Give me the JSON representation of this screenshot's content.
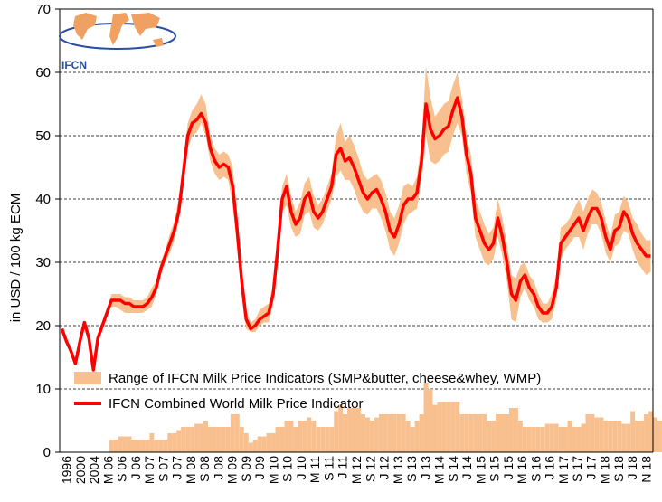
{
  "chart_data": {
    "type": "line",
    "title": "",
    "xlabel": "",
    "ylabel": "in USD / 100 kg ECM",
    "ylim": [
      0,
      70
    ],
    "yticks": [
      "0",
      "10",
      "20",
      "30",
      "40",
      "50",
      "60",
      "70"
    ],
    "grid": "horizontal dashed",
    "legend_position": "bottom-left",
    "logo_text": "IFCN",
    "x_tick_labels": [
      "1996",
      "2000",
      "2004",
      "M 06",
      "S 06",
      "J 06",
      "M 07",
      "S 07",
      "J 07",
      "M 08",
      "S 08",
      "J 08",
      "M 09",
      "S 09",
      "J 09",
      "M 10",
      "S 10",
      "J 10",
      "M 11",
      "S 11",
      "J 11",
      "M 12",
      "S 12",
      "J 12",
      "M 13",
      "S 13",
      "J 13",
      "M 14",
      "S 14",
      "J 14",
      "M 15",
      "S 15",
      "J 15",
      "M 16",
      "S 16",
      "J 16",
      "M 17",
      "S 17",
      "J 17",
      "M 18",
      "S 18",
      "J 18",
      "N 18"
    ],
    "colors": {
      "line": "#ff0000",
      "range": "#f9c08f",
      "bars": "#f9c08f"
    },
    "series": [
      {
        "name": "IFCN Combined World Milk Price Indicator",
        "type": "line",
        "values": [
          19.5,
          17.5,
          16,
          14,
          17.5,
          20.5,
          18,
          13,
          18,
          20,
          22,
          24,
          24,
          24,
          23.5,
          23.5,
          23,
          23,
          23,
          23.5,
          24.5,
          26,
          29,
          31,
          33,
          35,
          38,
          44,
          50,
          52,
          52.5,
          53.5,
          52,
          48,
          46,
          45,
          45.5,
          45,
          42,
          35,
          27,
          21,
          19.5,
          20,
          21,
          21.5,
          22,
          25,
          32,
          40,
          42,
          38,
          36,
          37,
          40,
          41,
          38,
          37,
          38,
          40,
          42,
          47,
          48,
          46,
          46.5,
          45,
          43,
          41,
          40,
          41,
          41.5,
          40,
          38,
          35,
          34,
          36,
          39,
          40,
          40,
          41,
          46,
          55,
          51,
          49.5,
          50,
          51,
          51.5,
          54,
          56,
          53,
          47,
          44,
          37,
          35,
          33,
          32,
          33,
          37,
          34,
          30,
          25,
          24,
          27,
          28,
          26,
          25,
          23,
          22,
          22,
          23,
          26,
          33,
          34,
          35,
          36,
          37,
          35,
          37,
          38.5,
          38.5,
          37,
          34,
          32,
          35,
          35.5,
          38,
          37,
          34.5,
          33,
          32,
          31,
          31
        ]
      },
      {
        "name": "Range of IFCN Milk Price Indicators (SMP&butter, cheese&whey, WMP)",
        "type": "band",
        "lower": [
          19.5,
          17.5,
          16,
          14,
          17.5,
          20.5,
          18,
          13,
          18,
          20,
          22,
          23,
          23,
          22.5,
          22,
          22,
          22,
          22,
          22,
          22.5,
          23,
          25,
          28,
          30,
          31.5,
          33.5,
          36.5,
          42,
          48,
          50,
          50.5,
          52,
          50,
          46,
          44,
          43,
          43.5,
          43,
          39,
          32,
          25,
          19.5,
          19,
          19,
          20,
          20.5,
          20.5,
          23.5,
          30,
          38,
          39,
          35.5,
          34,
          34.5,
          37.5,
          38,
          35.5,
          35,
          36,
          38,
          40,
          43.5,
          44.5,
          43,
          43,
          41.5,
          39.5,
          38,
          37.5,
          38.5,
          38.5,
          37,
          35,
          32,
          31,
          33,
          36,
          37.5,
          38,
          38.5,
          43,
          50,
          46,
          45.5,
          46,
          47,
          47.5,
          50,
          52,
          50,
          44,
          41,
          34,
          32,
          30,
          29.5,
          30.5,
          34,
          31,
          27,
          21,
          20.5,
          24.5,
          26,
          24,
          23,
          21,
          20.5,
          20.5,
          21,
          24,
          30.5,
          32,
          33,
          34,
          34,
          32,
          34.5,
          36,
          36,
          34.5,
          31.5,
          30,
          32.5,
          33,
          35,
          34.5,
          32,
          30,
          29,
          28,
          28.5
        ],
        "upper": [
          19.5,
          17.5,
          16,
          14,
          17.5,
          20.5,
          18,
          13,
          18,
          20,
          22,
          25,
          25,
          25,
          24.5,
          24.5,
          24,
          24,
          24,
          24.5,
          26,
          27,
          30,
          32,
          34.5,
          36.5,
          40,
          46,
          52,
          54,
          55,
          56.5,
          55,
          50,
          48,
          47,
          47.5,
          47,
          45,
          38,
          29,
          22.5,
          20.5,
          21,
          22.5,
          23,
          23.5,
          26.5,
          34,
          42,
          44,
          40.5,
          38,
          39.5,
          42.5,
          43.5,
          40.5,
          39,
          40,
          42,
          44,
          50,
          52,
          49,
          50,
          48.5,
          46.5,
          44,
          43,
          43.5,
          44,
          43,
          41,
          38,
          37,
          39,
          42,
          42.5,
          42,
          43.5,
          49,
          61,
          56,
          53,
          54,
          55,
          55.5,
          58,
          60,
          56,
          50,
          47,
          40,
          38,
          36,
          34.5,
          35.5,
          40,
          37,
          33,
          28,
          27.5,
          29.5,
          30,
          28,
          27,
          25,
          23.5,
          23.5,
          25,
          28,
          35.5,
          36,
          37,
          38.5,
          40,
          38,
          40,
          41.5,
          41,
          39.5,
          36.5,
          34,
          37.5,
          38,
          40.5,
          39.5,
          37,
          36,
          34.5,
          33.5,
          33.5
        ]
      },
      {
        "name": "Range bars",
        "type": "bar",
        "values": [
          0,
          0,
          0,
          0,
          0,
          0,
          0,
          0,
          0,
          0,
          0,
          2,
          2,
          2.5,
          2.5,
          2.5,
          2,
          2,
          2,
          2,
          3,
          2,
          2,
          2,
          3,
          3,
          3.5,
          4,
          4,
          4,
          4.5,
          4.5,
          5,
          4,
          4,
          4,
          4,
          4,
          6,
          6,
          4,
          3,
          1.5,
          2,
          2.5,
          2.5,
          3,
          3,
          4,
          4,
          5,
          5,
          4,
          5,
          5,
          5.5,
          5,
          4,
          4,
          4,
          4,
          6.5,
          7.5,
          6,
          7,
          7,
          7,
          6,
          5.5,
          5,
          5.5,
          6,
          6,
          6,
          6,
          6,
          6,
          5,
          4,
          5,
          6,
          11,
          10,
          7.5,
          8,
          8,
          8,
          8,
          8,
          6,
          6,
          6,
          6,
          6,
          6,
          5,
          5,
          6,
          6,
          6,
          7,
          7,
          5,
          4,
          4,
          4,
          4,
          4,
          4.5,
          4.5,
          4.5,
          4,
          4,
          5,
          4,
          4,
          4.5,
          6,
          6,
          5.5,
          5.5,
          5,
          5,
          5,
          5,
          4.5,
          4.5,
          6.5,
          5,
          5,
          6,
          6.5,
          5.5,
          5
        ]
      }
    ]
  }
}
